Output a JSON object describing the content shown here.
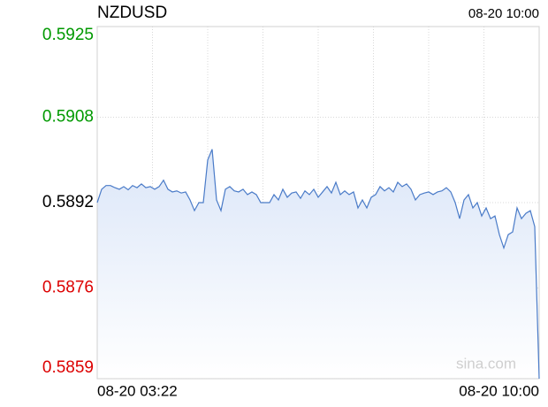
{
  "chart_data": {
    "type": "line",
    "title": "NZDUSD",
    "timestamp": "08-20 10:00",
    "watermark": "sina.com",
    "categories": [
      "08-20 03:22",
      null,
      null,
      null,
      null,
      null,
      null,
      null,
      null,
      null,
      null,
      null,
      null,
      null,
      null,
      null,
      null,
      null,
      null,
      null,
      null,
      null,
      null,
      null,
      null,
      null,
      null,
      null,
      null,
      null,
      null,
      null,
      null,
      null,
      null,
      null,
      null,
      null,
      null,
      null,
      null,
      null,
      null,
      null,
      null,
      null,
      null,
      null,
      null,
      null,
      null,
      null,
      null,
      null,
      null,
      null,
      null,
      null,
      null,
      null,
      null,
      null,
      null,
      null,
      null,
      null,
      null,
      null,
      null,
      null,
      null,
      null,
      null,
      null,
      null,
      null,
      null,
      null,
      null,
      null,
      null,
      null,
      null,
      null,
      null,
      null,
      null,
      null,
      null,
      null,
      null,
      null,
      null,
      null,
      null,
      null,
      null,
      null,
      null,
      null,
      "08-20 10:00"
    ],
    "values": [
      0.5892,
      0.58945,
      0.58952,
      0.58952,
      0.58948,
      0.58945,
      0.5895,
      0.58944,
      0.58952,
      0.58948,
      0.58955,
      0.58948,
      0.5895,
      0.58945,
      0.5895,
      0.58962,
      0.58945,
      0.5894,
      0.58942,
      0.58938,
      0.5894,
      0.58925,
      0.58905,
      0.5892,
      0.5892,
      0.59,
      0.5902,
      0.58925,
      0.58905,
      0.58945,
      0.5895,
      0.58942,
      0.5894,
      0.58945,
      0.58935,
      0.5894,
      0.58935,
      0.5892,
      0.5892,
      0.5892,
      0.58935,
      0.58925,
      0.58945,
      0.5893,
      0.58938,
      0.5894,
      0.58928,
      0.58942,
      0.58935,
      0.58945,
      0.5893,
      0.5894,
      0.5895,
      0.58938,
      0.58958,
      0.58935,
      0.58942,
      0.58935,
      0.5894,
      0.5891,
      0.58925,
      0.5891,
      0.5893,
      0.58935,
      0.5895,
      0.58942,
      0.58948,
      0.5894,
      0.58958,
      0.5895,
      0.58955,
      0.58945,
      0.58925,
      0.58935,
      0.58938,
      0.5894,
      0.58935,
      0.5894,
      0.58942,
      0.58948,
      0.5894,
      0.5892,
      0.5889,
      0.58925,
      0.58935,
      0.5891,
      0.5892,
      0.58895,
      0.5891,
      0.5889,
      0.58895,
      0.5886,
      0.58835,
      0.5886,
      0.58865,
      0.5891,
      0.5889,
      0.589,
      0.58905,
      0.58875,
      0.5859
    ],
    "color": "#4a7bc8",
    "ylim": [
      0.5859,
      0.5925
    ],
    "yticks": [
      0.5925,
      0.5908,
      0.5892,
      0.5876,
      0.5859
    ],
    "ytick_colors": [
      "#009900",
      "#009900",
      "#000000",
      "#dd0000",
      "#dd0000"
    ],
    "grid": true
  }
}
